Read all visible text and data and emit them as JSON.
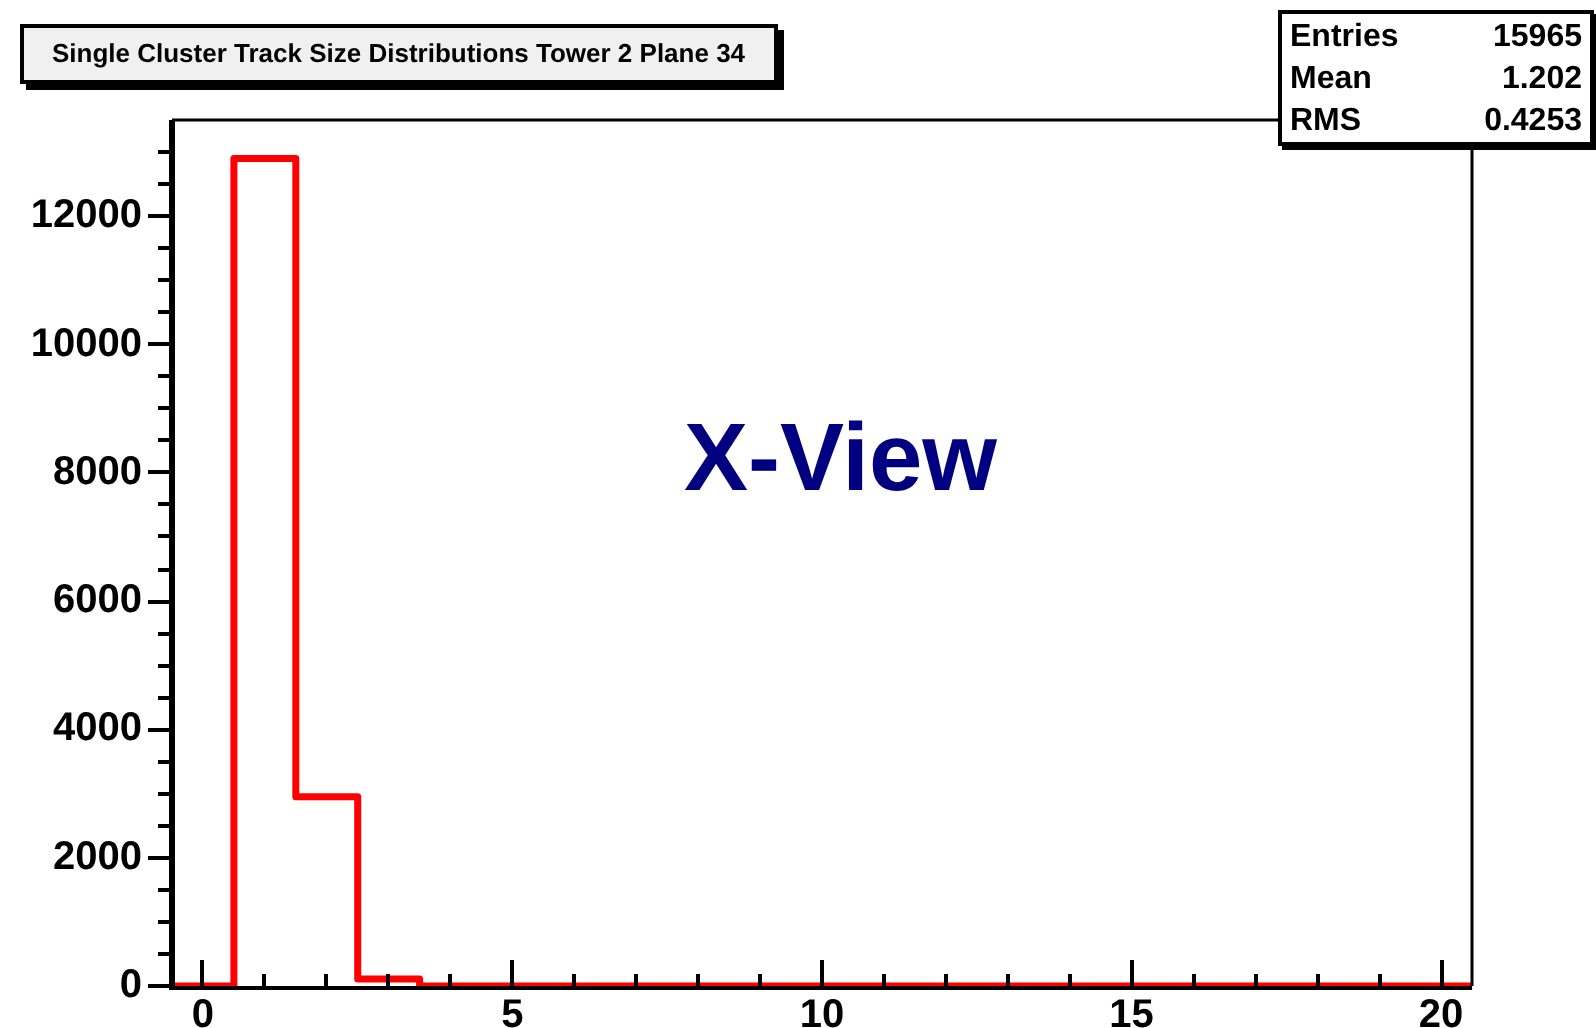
{
  "chart_data": {
    "type": "histogram",
    "title": "Single Cluster Track Size Distributions Tower 2 Plane 34",
    "bins": [
      -0.5,
      0.5,
      1.5,
      2.5,
      3.5,
      4.5,
      5.5,
      6.5,
      7.5,
      8.5,
      9.5,
      10.5,
      11.5,
      12.5,
      13.5,
      14.5,
      15.5,
      16.5,
      17.5,
      18.5,
      19.5,
      20.5
    ],
    "values": [
      0,
      12900,
      2950,
      110,
      0,
      0,
      0,
      0,
      0,
      0,
      0,
      0,
      0,
      0,
      0,
      0,
      0,
      0,
      0,
      0,
      0
    ],
    "color": "#ff0000",
    "xlim": [
      -0.5,
      20.5
    ],
    "xticks": [
      0,
      {
        "value": 1,
        "label": null
      },
      {
        "value": 2,
        "label": null
      },
      {
        "value": 3,
        "label": null
      },
      {
        "value": 4,
        "label": null
      },
      5,
      {
        "value": 6,
        "label": null
      },
      {
        "value": 7,
        "label": null
      },
      {
        "value": 8,
        "label": null
      },
      {
        "value": 9,
        "label": null
      },
      10,
      {
        "value": 11,
        "label": null
      },
      {
        "value": 12,
        "label": null
      },
      {
        "value": 13,
        "label": null
      },
      {
        "value": 14,
        "label": null
      },
      15,
      {
        "value": 16,
        "label": null
      },
      {
        "value": 17,
        "label": null
      },
      {
        "value": 18,
        "label": null
      },
      {
        "value": 19,
        "label": null
      },
      20
    ],
    "ylim": [
      0,
      13500
    ],
    "yticks": [
      0,
      {
        "value": 500,
        "label": null
      },
      {
        "value": 1000,
        "label": null
      },
      {
        "value": 1500,
        "label": null
      },
      2000,
      {
        "value": 2500,
        "label": null
      },
      {
        "value": 3000,
        "label": null
      },
      {
        "value": 3500,
        "label": null
      },
      4000,
      {
        "value": 4500,
        "label": null
      },
      {
        "value": 5000,
        "label": null
      },
      {
        "value": 5500,
        "label": null
      },
      6000,
      {
        "value": 6500,
        "label": null
      },
      {
        "value": 7000,
        "label": null
      },
      {
        "value": 7500,
        "label": null
      },
      8000,
      {
        "value": 8500,
        "label": null
      },
      {
        "value": 9000,
        "label": null
      },
      {
        "value": 9500,
        "label": null
      },
      10000,
      {
        "value": 10500,
        "label": null
      },
      {
        "value": 11000,
        "label": null
      },
      {
        "value": 11500,
        "label": null
      },
      12000,
      {
        "value": 12500,
        "label": null
      },
      {
        "value": 13000,
        "label": null
      }
    ],
    "grid": false,
    "legend": false,
    "annotations": [
      "Entries 15965",
      "Mean 1.202",
      "RMS 0.4253",
      "X-View"
    ]
  }
}
